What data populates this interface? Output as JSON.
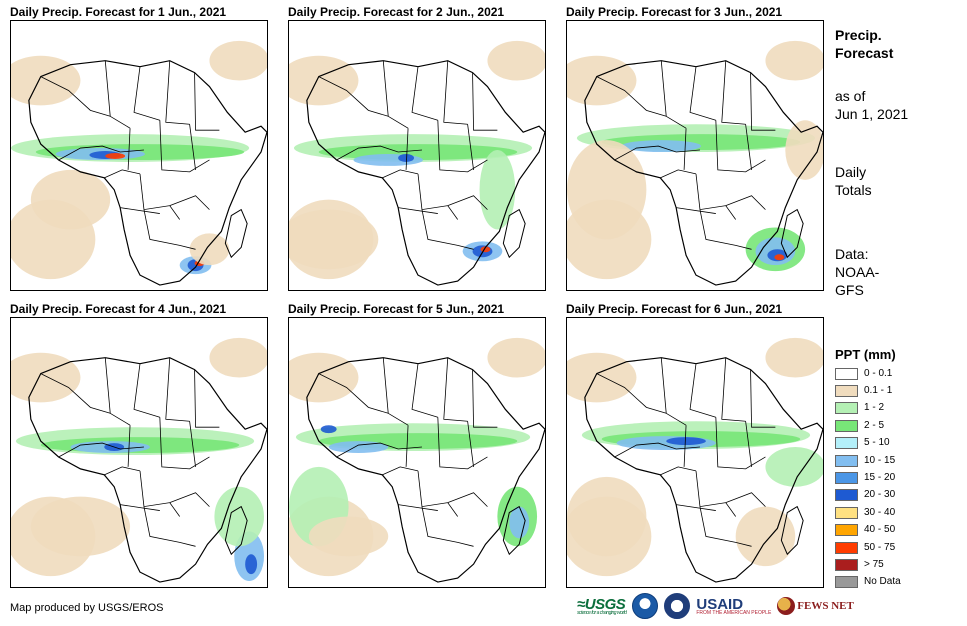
{
  "panels": [
    {
      "title": "Daily Precip. Forecast for 1 Jun., 2021"
    },
    {
      "title": "Daily Precip. Forecast for 2 Jun., 2021"
    },
    {
      "title": "Daily Precip. Forecast for 3 Jun., 2021"
    },
    {
      "title": "Daily Precip. Forecast for 4 Jun., 2021"
    },
    {
      "title": "Daily Precip. Forecast for 5 Jun., 2021"
    },
    {
      "title": "Daily Precip. Forecast for 6 Jun., 2021"
    }
  ],
  "side": {
    "heading_1": "Precip.",
    "heading_2": "Forecast",
    "as_of_1": "as of",
    "as_of_2": "Jun 1, 2021",
    "totals_1": "Daily",
    "totals_2": "Totals",
    "data_1": "Data:",
    "data_2": "NOAA-",
    "data_3": "GFS"
  },
  "legend": {
    "title": "PPT (mm)",
    "items": [
      {
        "label": "0 - 0.1",
        "color": "#ffffff"
      },
      {
        "label": "0.1 - 1",
        "color": "#f0dcbe"
      },
      {
        "label": "1 - 2",
        "color": "#b4f0b4"
      },
      {
        "label": "2 - 5",
        "color": "#78e678"
      },
      {
        "label": "5 - 10",
        "color": "#b4f0fa"
      },
      {
        "label": "10 - 15",
        "color": "#82bef0"
      },
      {
        "label": "15 - 20",
        "color": "#4b96e6"
      },
      {
        "label": "20 - 30",
        "color": "#1e5ad2"
      },
      {
        "label": "30 - 40",
        "color": "#ffe182"
      },
      {
        "label": "40 - 50",
        "color": "#ffa500"
      },
      {
        "label": "50 - 75",
        "color": "#ff3c00"
      },
      {
        "label": "> 75",
        "color": "#aa1e1e"
      },
      {
        "label": "No Data",
        "color": "#999999"
      }
    ]
  },
  "footer": {
    "credit": "Map produced by USGS/EROS",
    "logo_usgs": "≈USGS",
    "logo_usgs_tag": "science for a changing world",
    "logo_usaid": "USAID",
    "logo_usaid_tag": "FROM THE AMERICAN PEOPLE",
    "logo_fews": "FEWS NET"
  }
}
